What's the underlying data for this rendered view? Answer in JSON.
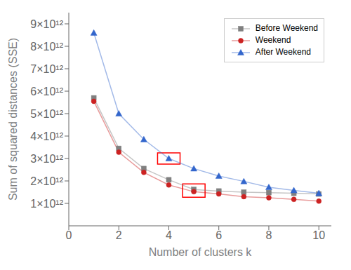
{
  "chart_data": {
    "type": "line",
    "x": [
      1,
      2,
      3,
      4,
      5,
      6,
      7,
      8,
      9,
      10
    ],
    "series": [
      {
        "name": "Before Weekend",
        "color": "#808080",
        "marker": "square",
        "values": [
          5700000000000.0,
          3450000000000.0,
          2550000000000.0,
          2050000000000.0,
          1620000000000.0,
          1550000000000.0,
          1500000000000.0,
          1480000000000.0,
          1450000000000.0,
          1420000000000.0
        ]
      },
      {
        "name": "Weekend",
        "color": "#cc2222",
        "marker": "circle",
        "values": [
          5550000000000.0,
          3280000000000.0,
          2380000000000.0,
          1820000000000.0,
          1520000000000.0,
          1420000000000.0,
          1300000000000.0,
          1250000000000.0,
          1180000000000.0,
          1100000000000.0
        ]
      },
      {
        "name": "After Weekend",
        "color": "#3366cc",
        "marker": "triangle",
        "values": [
          8600000000000.0,
          5000000000000.0,
          3850000000000.0,
          3000000000000.0,
          2550000000000.0,
          2220000000000.0,
          1980000000000.0,
          1720000000000.0,
          1580000000000.0,
          1450000000000.0
        ]
      }
    ],
    "xlabel": "Number of clusters k",
    "ylabel": "Sum of squared distances (SSE)",
    "xlim": [
      0,
      10.5
    ],
    "xticks": [
      0,
      2,
      4,
      6,
      8,
      10
    ],
    "ylim": [
      0,
      9500000000000.0
    ],
    "yticks": [
      {
        "value": 1000000000000.0,
        "label": "1×10¹²"
      },
      {
        "value": 2000000000000.0,
        "label": "2×10¹²"
      },
      {
        "value": 3000000000000.0,
        "label": "3×10¹²"
      },
      {
        "value": 4000000000000.0,
        "label": "4×10¹²"
      },
      {
        "value": 5000000000000.0,
        "label": "5×10¹²"
      },
      {
        "value": 6000000000000.0,
        "label": "6×10¹²"
      },
      {
        "value": 7000000000000.0,
        "label": "7×10¹²"
      },
      {
        "value": 8000000000000.0,
        "label": "8×10¹²"
      },
      {
        "value": 9000000000000.0,
        "label": "9×10¹²"
      }
    ],
    "grid": false,
    "legend": "upper right",
    "boxes": [
      {
        "x": 4,
        "series": [
          "After Weekend"
        ],
        "color": "red"
      },
      {
        "x": 5,
        "series": [
          "Before Weekend",
          "Weekend"
        ],
        "color": "red"
      }
    ]
  }
}
